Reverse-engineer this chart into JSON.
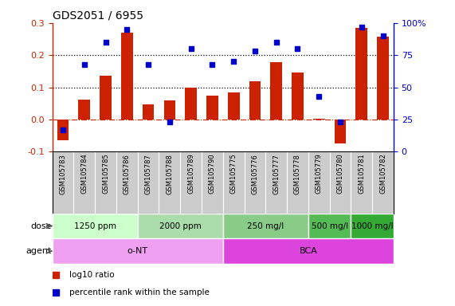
{
  "title": "GDS2051 / 6955",
  "samples": [
    "GSM105783",
    "GSM105784",
    "GSM105785",
    "GSM105786",
    "GSM105787",
    "GSM105788",
    "GSM105789",
    "GSM105790",
    "GSM105775",
    "GSM105776",
    "GSM105777",
    "GSM105778",
    "GSM105779",
    "GSM105780",
    "GSM105781",
    "GSM105782"
  ],
  "log10_ratio": [
    -0.065,
    0.062,
    0.135,
    0.27,
    0.048,
    0.06,
    0.1,
    0.075,
    0.085,
    0.12,
    0.178,
    0.145,
    0.003,
    -0.075,
    0.285,
    0.258
  ],
  "pct_rank": [
    17,
    68,
    85,
    95,
    68,
    23,
    80,
    68,
    70,
    78,
    85,
    80,
    43,
    23,
    97,
    90
  ],
  "ylim": [
    -0.1,
    0.3
  ],
  "yticks_left": [
    -0.1,
    0.0,
    0.1,
    0.2,
    0.3
  ],
  "yticks_right": [
    0,
    25,
    50,
    75,
    100
  ],
  "hlines": [
    0.1,
    0.2
  ],
  "bar_color": "#cc2200",
  "scatter_color": "#0000cc",
  "zero_line_color": "#cc2200",
  "dose_groups": [
    {
      "label": "1250 ppm",
      "start": 0,
      "end": 4,
      "color": "#ccffcc"
    },
    {
      "label": "2000 ppm",
      "start": 4,
      "end": 8,
      "color": "#aaddaa"
    },
    {
      "label": "250 mg/l",
      "start": 8,
      "end": 12,
      "color": "#88cc88"
    },
    {
      "label": "500 mg/l",
      "start": 12,
      "end": 14,
      "color": "#55bb55"
    },
    {
      "label": "1000 mg/l",
      "start": 14,
      "end": 16,
      "color": "#33aa33"
    }
  ],
  "agent_groups": [
    {
      "label": "o-NT",
      "start": 0,
      "end": 8,
      "color": "#f0a0f0"
    },
    {
      "label": "BCA",
      "start": 8,
      "end": 16,
      "color": "#dd44dd"
    }
  ],
  "legend_items": [
    {
      "label": "log10 ratio",
      "color": "#cc2200"
    },
    {
      "label": "percentile rank within the sample",
      "color": "#0000cc"
    }
  ],
  "dose_label": "dose",
  "agent_label": "agent"
}
